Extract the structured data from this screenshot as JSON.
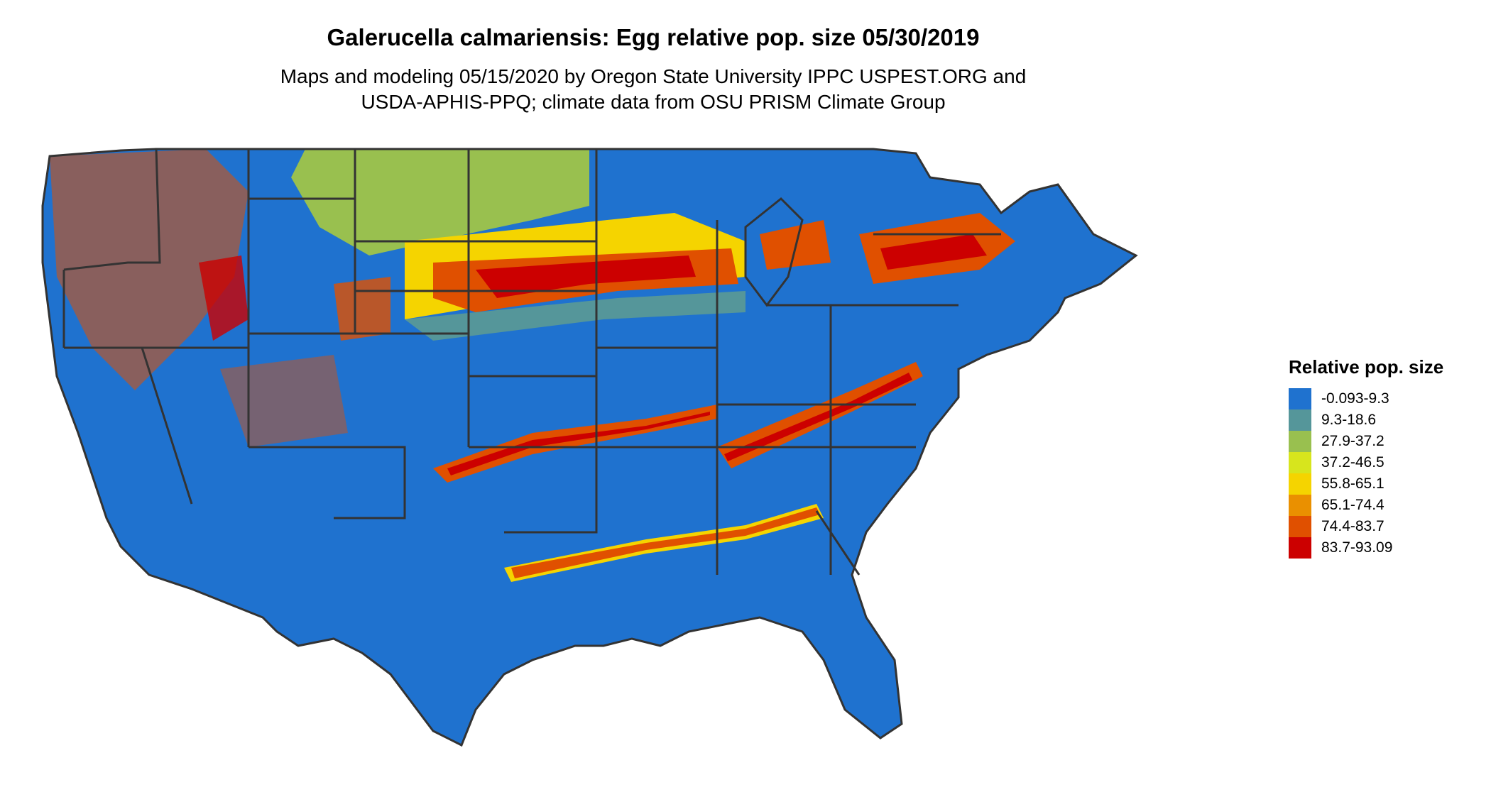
{
  "title": "Galerucella calmariensis: Egg relative pop. size 05/30/2019",
  "subtitle_line1": "Maps and modeling 05/15/2020 by Oregon State University IPPC USPEST.ORG and",
  "subtitle_line2": "USDA-APHIS-PPQ; climate data from OSU PRISM Climate Group",
  "legend": {
    "title": "Relative pop. size",
    "items": [
      {
        "label": "-0.093-9.3",
        "color": "#1f72cf"
      },
      {
        "label": "9.3-18.6",
        "color": "#55969a"
      },
      {
        "label": "27.9-37.2",
        "color": "#99c04f"
      },
      {
        "label": "37.2-46.5",
        "color": "#d7e51d"
      },
      {
        "label": "55.8-65.1",
        "color": "#f5d400"
      },
      {
        "label": "65.1-74.4",
        "color": "#ea9000"
      },
      {
        "label": "74.4-83.7",
        "color": "#e05000"
      },
      {
        "label": "83.7-93.09",
        "color": "#cc0000"
      }
    ]
  },
  "colors": {
    "border": "#333333",
    "background": "#ffffff"
  }
}
